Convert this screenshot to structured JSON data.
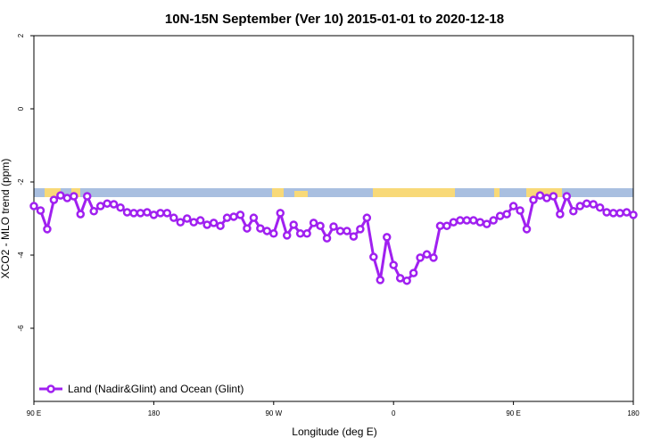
{
  "chart_data": {
    "type": "line",
    "title": "10N-15N September (Ver 10)   2015-01-01 to 2020-12-18",
    "xlabel": "Longitude (deg E)",
    "ylabel": "XCO2 - MLO trend (ppm)",
    "xlim": [
      90,
      540
    ],
    "ylim": [
      -8,
      2
    ],
    "xticks": [
      {
        "value": 90,
        "label": "90 E"
      },
      180,
      {
        "value": 270,
        "label": "90 W"
      },
      {
        "value": 360,
        "label": "0"
      },
      {
        "value": 450,
        "label": "90 E"
      },
      {
        "value": 540,
        "label": "180"
      }
    ],
    "yticks": [
      -6,
      -4,
      -2,
      0,
      2
    ],
    "legend": "bottom-left",
    "x": [
      90,
      95,
      100,
      105,
      110,
      115,
      120,
      125,
      130,
      135,
      140,
      145,
      150,
      155,
      160,
      165,
      170,
      175,
      180,
      185,
      190,
      195,
      200,
      205,
      210,
      215,
      220,
      225,
      230,
      235,
      240,
      245,
      250,
      255,
      260,
      265,
      270,
      275,
      280,
      285,
      290,
      295,
      300,
      305,
      310,
      315,
      320,
      325,
      330,
      335,
      340,
      345,
      350,
      355,
      360,
      365,
      370,
      375,
      380,
      385,
      390,
      395,
      400,
      405,
      410,
      415,
      420,
      425,
      430,
      435,
      440,
      445,
      450,
      455,
      460,
      465,
      470,
      475,
      480,
      485,
      490,
      495,
      500,
      505,
      510,
      515,
      520,
      525,
      530,
      535,
      540
    ],
    "series": [
      {
        "name": "Land (Nadir&Glint) and Ocean (Glint)",
        "color": "#a020f0",
        "values": [
          -2.66,
          -2.78,
          -3.29,
          -2.49,
          -2.37,
          -2.44,
          -2.39,
          -2.88,
          -2.39,
          -2.8,
          -2.66,
          -2.59,
          -2.61,
          -2.7,
          -2.83,
          -2.85,
          -2.85,
          -2.83,
          -2.9,
          -2.85,
          -2.85,
          -2.98,
          -3.1,
          -3.0,
          -3.1,
          -3.05,
          -3.17,
          -3.12,
          -3.2,
          -2.98,
          -2.95,
          -2.9,
          -3.27,
          -2.98,
          -3.27,
          -3.34,
          -3.41,
          -2.85,
          -3.46,
          -3.17,
          -3.41,
          -3.41,
          -3.12,
          -3.2,
          -3.54,
          -3.22,
          -3.34,
          -3.34,
          -3.49,
          -3.29,
          -2.98,
          -4.05,
          -4.68,
          -3.51,
          -4.27,
          -4.63,
          -4.7,
          -4.49,
          -4.07,
          -3.98,
          -4.07,
          -3.2,
          -3.2,
          -3.1,
          -3.05,
          -3.05,
          -3.05,
          -3.1,
          -3.15,
          -3.05,
          -2.93,
          -2.88,
          -2.66,
          -2.78,
          -3.29,
          -2.49,
          -2.37,
          -2.44,
          -2.39,
          -2.88,
          -2.39,
          -2.8,
          -2.66,
          -2.59,
          -2.61,
          -2.7,
          -2.83,
          -2.85,
          -2.85,
          -2.83,
          -2.9
        ]
      }
    ]
  }
}
